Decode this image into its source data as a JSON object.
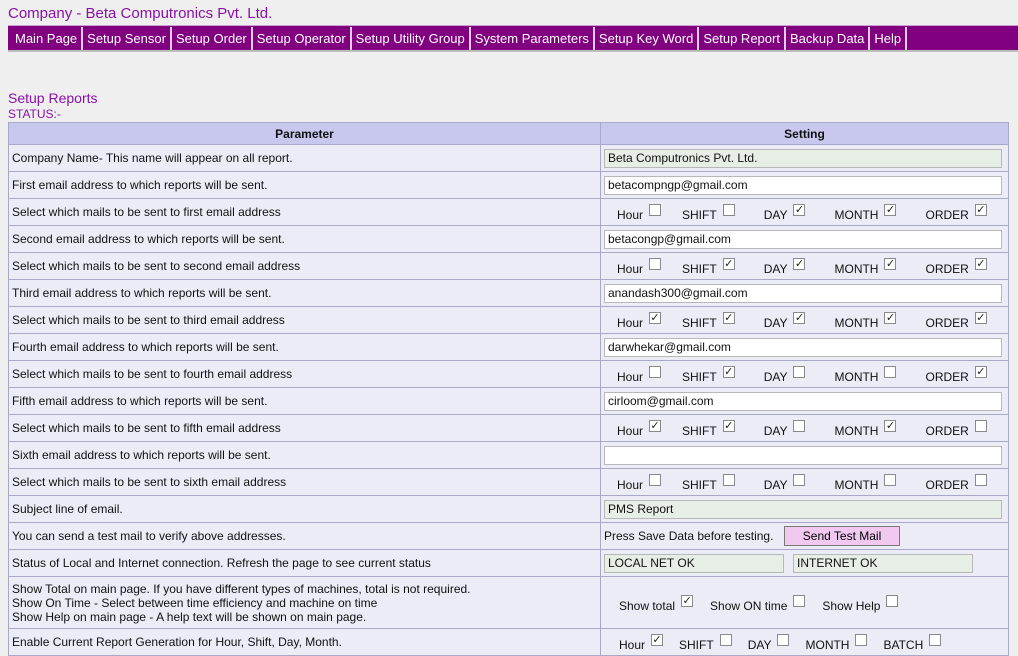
{
  "company_title": "Company - Beta Computronics Pvt. Ltd.",
  "nav": [
    "Main Page",
    "Setup Sensor",
    "Setup Order",
    "Setup Operator",
    "Setup Utility Group",
    "System Parameters",
    "Setup Key Word",
    "Setup Report",
    "Backup Data",
    "Help"
  ],
  "page_heading": "Setup Reports",
  "status_label": "STATUS:-",
  "table": {
    "col_parameter": "Parameter",
    "col_setting": "Setting"
  },
  "rows": {
    "company_name": {
      "label": "Company Name- This name will appear on all report.",
      "value": "Beta Computronics Pvt. Ltd."
    },
    "email1": {
      "label": "First email address to which reports will be sent.",
      "value": "betacompngp@gmail.com"
    },
    "mails1": {
      "label": "Select which mails to be sent to first email address"
    },
    "email2": {
      "label": "Second email address to which reports will be sent.",
      "value": "betacongp@gmail.com"
    },
    "mails2": {
      "label": "Select which mails to be sent to second email address"
    },
    "email3": {
      "label": "Third email address to which reports will be sent.",
      "value": "anandash300@gmail.com"
    },
    "mails3": {
      "label": "Select which mails to be sent to third email address"
    },
    "email4": {
      "label": "Fourth email address to which reports will be sent.",
      "value": "darwhekar@gmail.com"
    },
    "mails4": {
      "label": "Select which mails to be sent to fourth email address"
    },
    "email5": {
      "label": "Fifth email address to which reports will be sent.",
      "value": "cirloom@gmail.com"
    },
    "mails5": {
      "label": "Select which mails to be sent to fifth email address"
    },
    "email6": {
      "label": "Sixth email address to which reports will be sent.",
      "value": ""
    },
    "mails6": {
      "label": "Select which mails to be sent to sixth email address"
    },
    "subject": {
      "label": "Subject line of email.",
      "value": "PMS Report"
    },
    "test_mail": {
      "label": "You can send a test mail to verify above addresses.",
      "note": "Press Save Data before testing.",
      "button": "Send Test Mail"
    },
    "connection": {
      "label": "Status of Local and Internet connection. Refresh the page to see current status",
      "local": "LOCAL NET OK",
      "internet": "INTERNET OK"
    },
    "show_options": {
      "line1": "Show Total on main page. If you have different types of machines, total is not required.",
      "line2": "Show On Time - Select between time efficiency and machine on time",
      "line3": "Show Help on main page - A help text will be shown on main page."
    },
    "current_report": {
      "label": "Enable Current Report Generation for Hour, Shift, Day, Month."
    }
  },
  "mail_labels": [
    "Hour",
    "SHIFT",
    "DAY",
    "MONTH",
    "ORDER"
  ],
  "mail_checks": [
    [
      false,
      false,
      true,
      true,
      true
    ],
    [
      false,
      true,
      true,
      true,
      true
    ],
    [
      true,
      true,
      true,
      true,
      true
    ],
    [
      false,
      true,
      false,
      false,
      true
    ],
    [
      true,
      true,
      false,
      true,
      false
    ],
    [
      false,
      false,
      false,
      false,
      false
    ]
  ],
  "show_labels": [
    "Show total",
    "Show ON time",
    "Show Help"
  ],
  "show_checks": [
    true,
    false,
    false
  ],
  "current_labels": [
    "Hour",
    "SHIFT",
    "DAY",
    "MONTH",
    "BATCH"
  ],
  "current_checks": [
    true,
    false,
    false,
    false,
    false
  ]
}
